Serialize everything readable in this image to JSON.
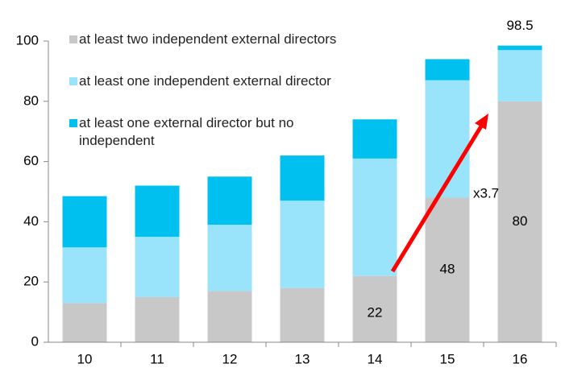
{
  "chart_data": {
    "type": "stacked_bar",
    "categories": [
      "10",
      "11",
      "12",
      "13",
      "14",
      "15",
      "16"
    ],
    "series": [
      {
        "name": "at least two independent external directors",
        "color": "#c8c8c8",
        "values": [
          13,
          15,
          17,
          18,
          22,
          48,
          80
        ],
        "value_labels": [
          null,
          null,
          null,
          null,
          "22",
          "48",
          "80"
        ]
      },
      {
        "name": "at least one independent external director",
        "color": "#99e3fb",
        "values": [
          18.5,
          20,
          22,
          29,
          39,
          39,
          17
        ]
      },
      {
        "name": "at least one external director but no independent",
        "color": "#00c0ef",
        "values": [
          17,
          17,
          16,
          15,
          13,
          7,
          1.5
        ]
      }
    ],
    "totals": [
      null,
      null,
      null,
      null,
      null,
      null,
      98.5
    ],
    "annotation": "x3.7",
    "ylim": [
      0,
      100
    ],
    "yticks": [
      0,
      20,
      40,
      60,
      80,
      100
    ],
    "grid": false
  }
}
